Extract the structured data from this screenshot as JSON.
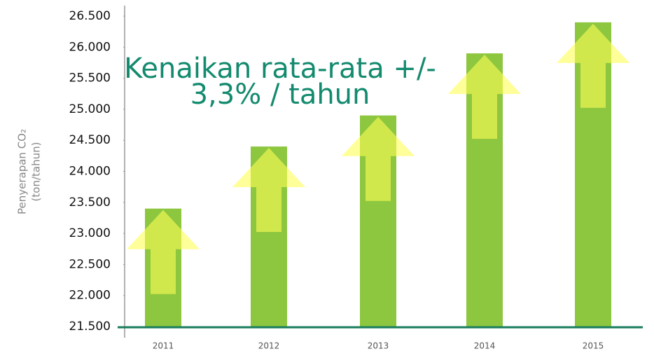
{
  "chart_data": {
    "type": "bar",
    "annotation": [
      "Kenaikan rata-rata +/-",
      "3,3% / tahun"
    ],
    "y_label": [
      "Penyerapan CO₂",
      "(ton/tahun)"
    ],
    "categories": [
      "2011",
      "2012",
      "2013",
      "2014",
      "2015"
    ],
    "values": [
      23400,
      24400,
      24900,
      25900,
      26400
    ],
    "color": "#8dc63f",
    "ylim": [
      21500,
      26500
    ],
    "yticks": [
      {
        "value": 21500,
        "label": "21.500"
      },
      {
        "value": 22000,
        "label": "22.000"
      },
      {
        "value": 22500,
        "label": "22.500"
      },
      {
        "value": 23000,
        "label": "23.000"
      },
      {
        "value": 23500,
        "label": "23.500"
      },
      {
        "value": 24000,
        "label": "24.000"
      },
      {
        "value": 24500,
        "label": "24.500"
      },
      {
        "value": 25000,
        "label": "25.000"
      },
      {
        "value": 25500,
        "label": "25.500"
      },
      {
        "value": 26000,
        "label": "26.000"
      },
      {
        "value": 26500,
        "label": "26.500"
      }
    ],
    "grid": false
  }
}
